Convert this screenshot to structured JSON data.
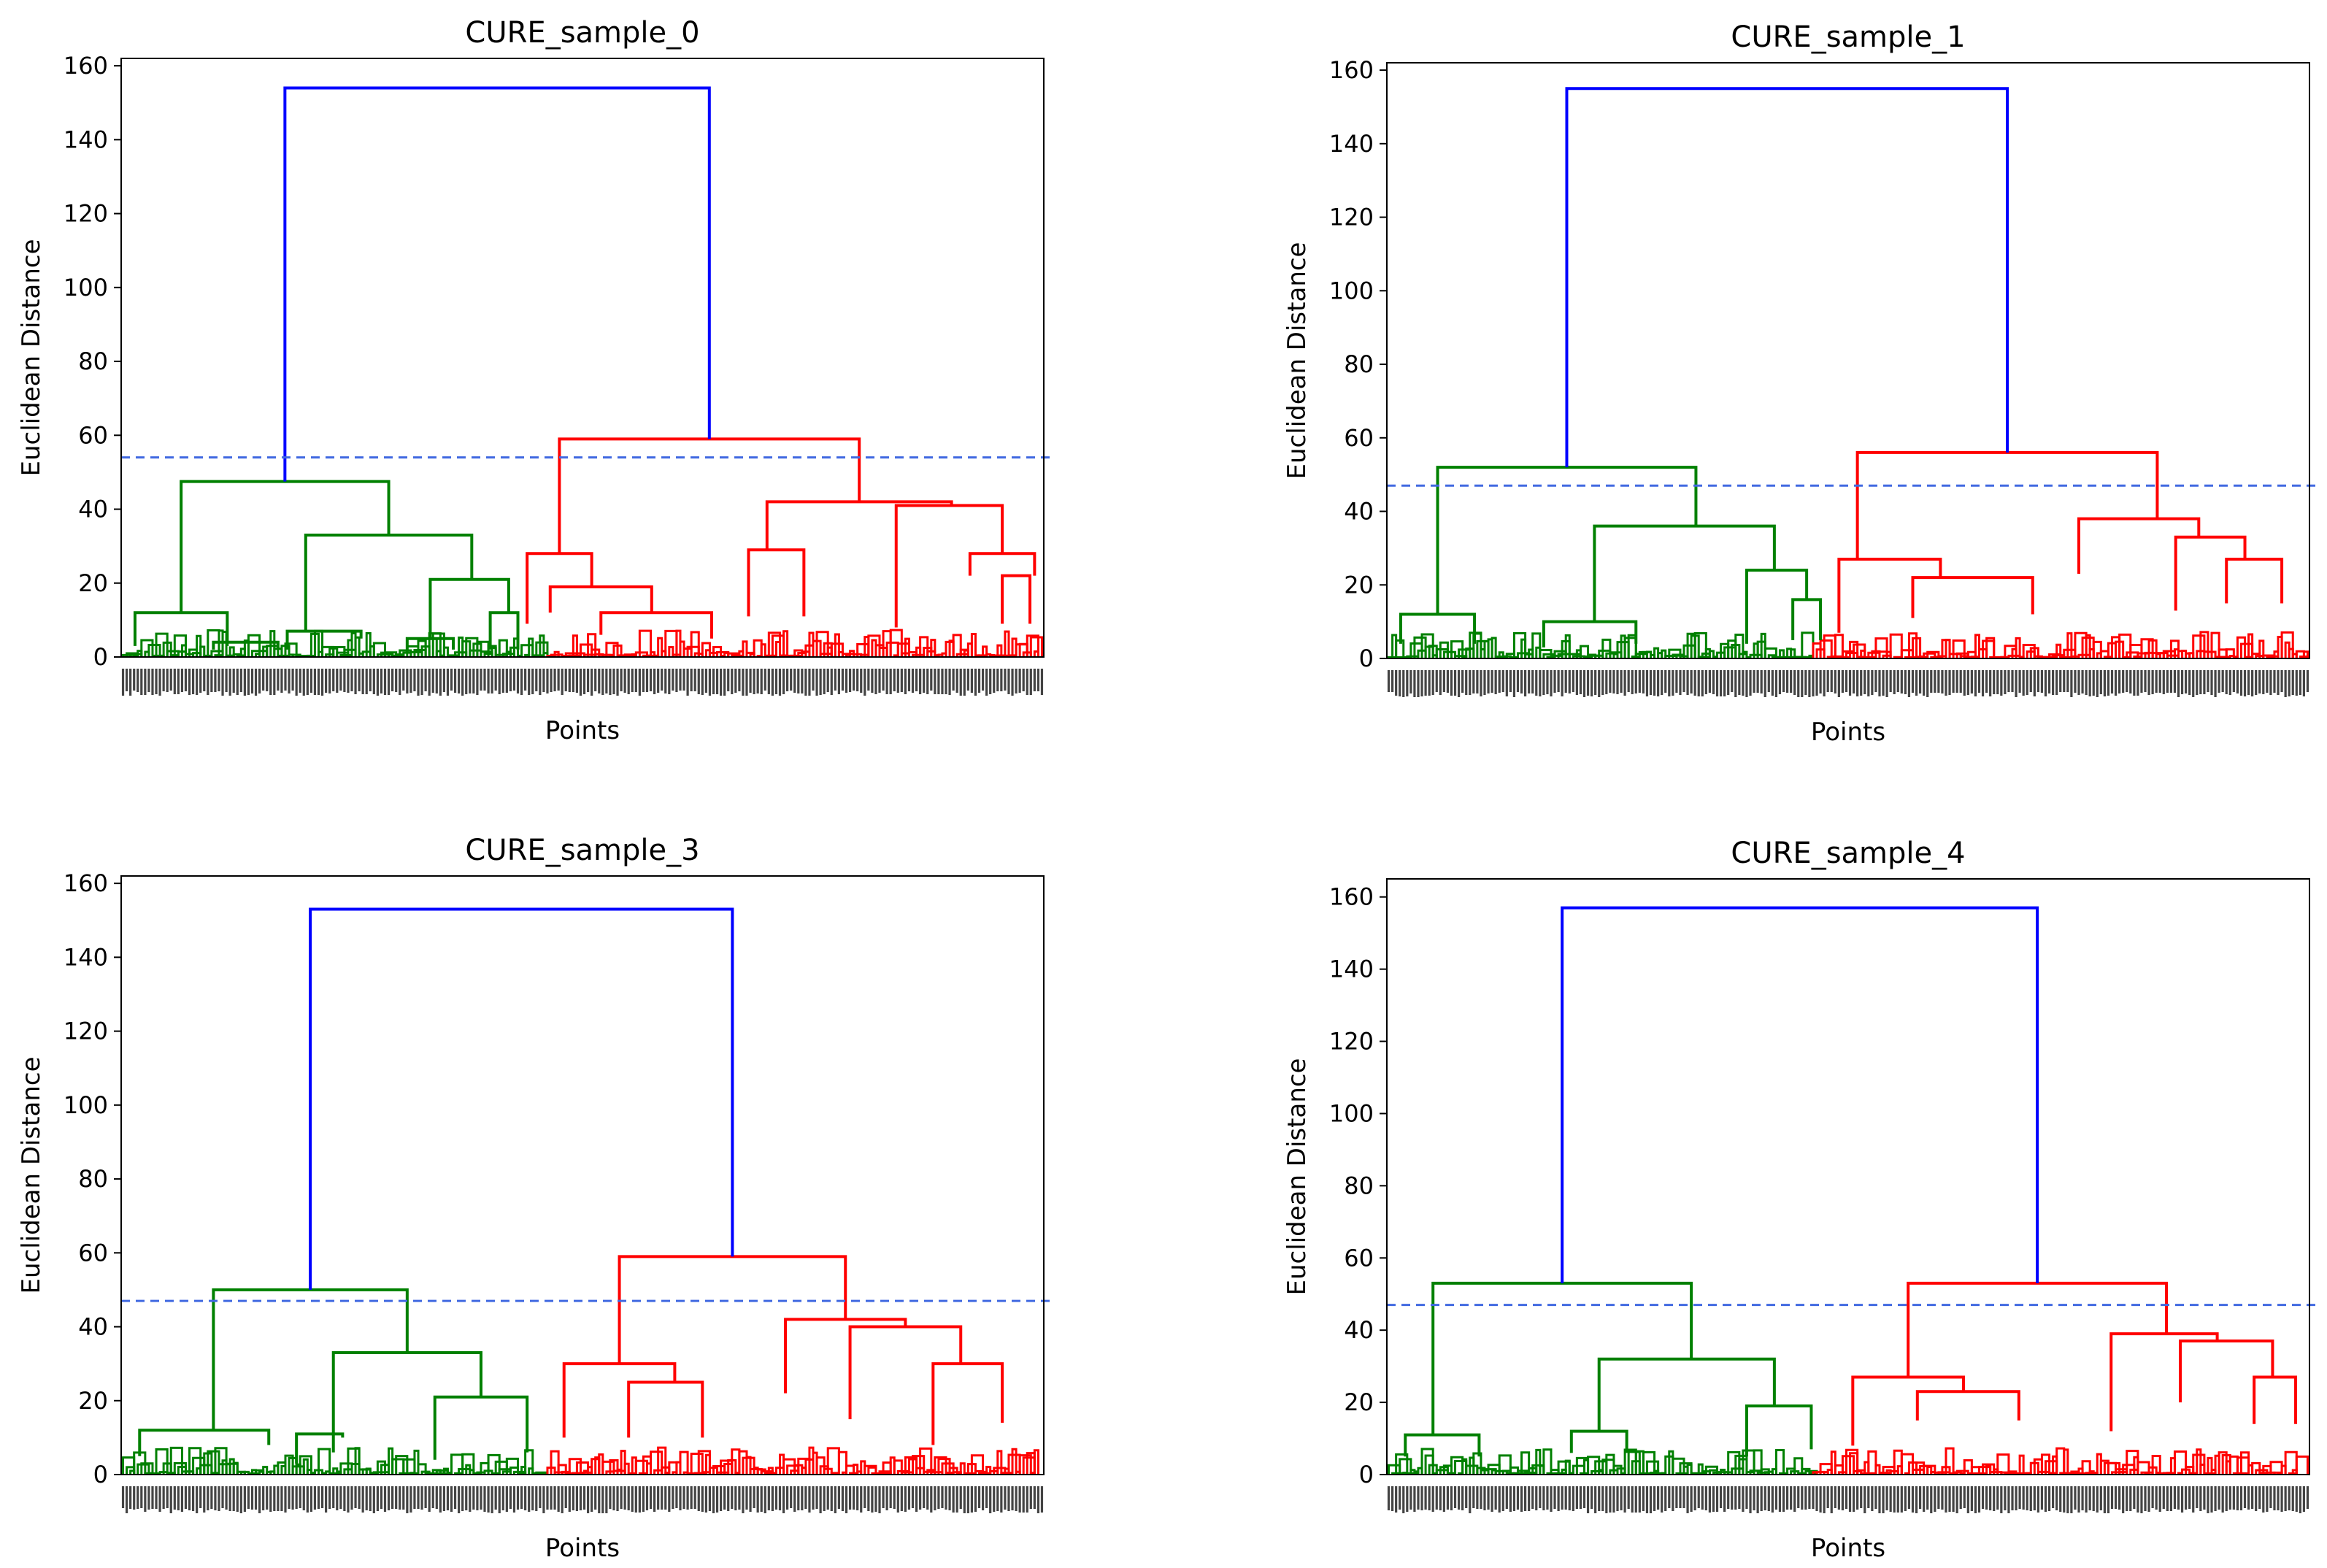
{
  "chart_data": [
    {
      "type": "dendrogram",
      "title": "CURE_sample_0",
      "xlabel": "Points",
      "ylabel": "Euclidean Distance",
      "ylim": [
        0,
        162
      ],
      "yticks": [
        0,
        20,
        40,
        60,
        80,
        100,
        120,
        140,
        160
      ],
      "leaf_count": 250,
      "cut_line": 54,
      "colors": {
        "left": "#008000",
        "right": "#ff0000",
        "root": "#0000ff",
        "cut": "#4169e1"
      },
      "root": {
        "height": 154,
        "left_x": 0.177,
        "right_x": 0.656
      },
      "left": {
        "height": 47.5,
        "segments": [
          [
            0,
            0.41,
            0,
            0.285,
            47.5
          ]
        ]
      },
      "right": {
        "height": 59,
        "segments": []
      },
      "links": [
        {
          "color": "left",
          "x1": 0.065,
          "x2": 0.29,
          "h1": 12,
          "h2": 33,
          "h": 47.5
        },
        {
          "color": "left",
          "x1": 0.015,
          "x2": 0.115,
          "h1": 3,
          "h2": 3,
          "h": 12
        },
        {
          "color": "left",
          "x1": 0.2,
          "x2": 0.38,
          "h1": 7,
          "h2": 21,
          "h": 33
        },
        {
          "color": "left",
          "x1": 0.1,
          "x2": 0.17,
          "h1": 2,
          "h2": 2,
          "h": 4
        },
        {
          "color": "left",
          "x1": 0.18,
          "x2": 0.26,
          "h1": 2,
          "h2": 5,
          "h": 7
        },
        {
          "color": "left",
          "x1": 0.335,
          "x2": 0.42,
          "h1": 5,
          "h2": 12,
          "h": 21
        },
        {
          "color": "left",
          "x1": 0.31,
          "x2": 0.36,
          "h1": 1,
          "h2": 2,
          "h": 5
        },
        {
          "color": "left",
          "x1": 0.4,
          "x2": 0.43,
          "h1": 2,
          "h2": 2,
          "h": 12
        },
        {
          "color": "right",
          "x1": 0.475,
          "x2": 0.8,
          "h1": 28,
          "h2": 42,
          "h": 59
        },
        {
          "color": "right",
          "x1": 0.44,
          "x2": 0.51,
          "h1": 9,
          "h2": 19,
          "h": 28
        },
        {
          "color": "right",
          "x1": 0.465,
          "x2": 0.575,
          "h1": 12,
          "h2": 12,
          "h": 19
        },
        {
          "color": "right",
          "x1": 0.52,
          "x2": 0.64,
          "h1": 6,
          "h2": 5,
          "h": 12
        },
        {
          "color": "right",
          "x1": 0.7,
          "x2": 0.9,
          "h1": 29,
          "h2": 41,
          "h": 42
        },
        {
          "color": "right",
          "x1": 0.68,
          "x2": 0.74,
          "h1": 11,
          "h2": 11,
          "h": 29
        },
        {
          "color": "right",
          "x1": 0.84,
          "x2": 0.955,
          "h1": 8,
          "h2": 28,
          "h": 41
        },
        {
          "color": "right",
          "x1": 0.92,
          "x2": 0.99,
          "h1": 22,
          "h2": 22,
          "h": 28
        },
        {
          "color": "right",
          "x1": 0.955,
          "x2": 0.985,
          "h1": 9,
          "h2": 9,
          "h": 22
        }
      ]
    },
    {
      "type": "dendrogram",
      "title": "CURE_sample_1",
      "xlabel": "Points",
      "ylabel": "Euclidean Distance",
      "ylim": [
        0,
        162
      ],
      "yticks": [
        0,
        20,
        40,
        60,
        80,
        100,
        120,
        140,
        160
      ],
      "leaf_count": 250,
      "cut_line": 47,
      "colors": {
        "left": "#008000",
        "right": "#ff0000",
        "root": "#0000ff",
        "cut": "#4169e1"
      },
      "root": {
        "height": 155,
        "left_x": 0.195,
        "right_x": 0.696
      },
      "links": [
        {
          "color": "left",
          "x1": 0.055,
          "x2": 0.335,
          "h1": 12,
          "h2": 36,
          "h": 52
        },
        {
          "color": "left",
          "x1": 0.015,
          "x2": 0.095,
          "h1": 4,
          "h2": 4,
          "h": 12
        },
        {
          "color": "left",
          "x1": 0.225,
          "x2": 0.42,
          "h1": 10,
          "h2": 24,
          "h": 36
        },
        {
          "color": "left",
          "x1": 0.17,
          "x2": 0.27,
          "h1": 3,
          "h2": 4,
          "h": 10
        },
        {
          "color": "left",
          "x1": 0.39,
          "x2": 0.455,
          "h1": 4,
          "h2": 16,
          "h": 24
        },
        {
          "color": "left",
          "x1": 0.44,
          "x2": 0.47,
          "h1": 5,
          "h2": 5,
          "h": 16
        },
        {
          "color": "right",
          "x1": 0.51,
          "x2": 0.835,
          "h1": 27,
          "h2": 38,
          "h": 56
        },
        {
          "color": "right",
          "x1": 0.49,
          "x2": 0.6,
          "h1": 7,
          "h2": 22,
          "h": 27
        },
        {
          "color": "right",
          "x1": 0.57,
          "x2": 0.7,
          "h1": 11,
          "h2": 12,
          "h": 22
        },
        {
          "color": "right",
          "x1": 0.75,
          "x2": 0.88,
          "h1": 23,
          "h2": 33,
          "h": 38
        },
        {
          "color": "right",
          "x1": 0.855,
          "x2": 0.93,
          "h1": 13,
          "h2": 27,
          "h": 33
        },
        {
          "color": "right",
          "x1": 0.91,
          "x2": 0.97,
          "h1": 15,
          "h2": 15,
          "h": 27
        }
      ]
    },
    {
      "type": "dendrogram",
      "title": "CURE_sample_3",
      "xlabel": "Points",
      "ylabel": "Euclidean Distance",
      "ylim": [
        0,
        162
      ],
      "yticks": [
        0,
        20,
        40,
        60,
        80,
        100,
        120,
        140,
        160
      ],
      "leaf_count": 250,
      "cut_line": 47,
      "colors": {
        "left": "#008000",
        "right": "#ff0000",
        "root": "#0000ff",
        "cut": "#4169e1"
      },
      "root": {
        "height": 153,
        "left_x": 0.2,
        "right_x": 0.655
      },
      "links": [
        {
          "color": "left",
          "x1": 0.1,
          "x2": 0.31,
          "h1": 12,
          "h2": 33,
          "h": 50
        },
        {
          "color": "left",
          "x1": 0.02,
          "x2": 0.16,
          "h1": 5,
          "h2": 8,
          "h": 12
        },
        {
          "color": "left",
          "x1": 0.23,
          "x2": 0.39,
          "h1": 6,
          "h2": 21,
          "h": 33
        },
        {
          "color": "left",
          "x1": 0.34,
          "x2": 0.44,
          "h1": 4,
          "h2": 6,
          "h": 21
        },
        {
          "color": "left",
          "x1": 0.19,
          "x2": 0.24,
          "h1": 3,
          "h2": 10,
          "h": 11
        },
        {
          "color": "right",
          "x1": 0.54,
          "x2": 0.785,
          "h1": 30,
          "h2": 42,
          "h": 59
        },
        {
          "color": "right",
          "x1": 0.48,
          "x2": 0.6,
          "h1": 10,
          "h2": 25,
          "h": 30
        },
        {
          "color": "right",
          "x1": 0.55,
          "x2": 0.63,
          "h1": 10,
          "h2": 10,
          "h": 25
        },
        {
          "color": "right",
          "x1": 0.72,
          "x2": 0.85,
          "h1": 22,
          "h2": 40,
          "h": 42
        },
        {
          "color": "right",
          "x1": 0.79,
          "x2": 0.91,
          "h1": 15,
          "h2": 30,
          "h": 40
        },
        {
          "color": "right",
          "x1": 0.88,
          "x2": 0.955,
          "h1": 8,
          "h2": 14,
          "h": 30
        }
      ]
    },
    {
      "type": "dendrogram",
      "title": "CURE_sample_4",
      "xlabel": "Points",
      "ylabel": "Euclidean Distance",
      "ylim": [
        0,
        165
      ],
      "yticks": [
        0,
        20,
        40,
        60,
        80,
        100,
        120,
        140,
        160
      ],
      "leaf_count": 250,
      "cut_line": 47,
      "colors": {
        "left": "#008000",
        "right": "#ff0000",
        "root": "#0000ff",
        "cut": "#4169e1"
      },
      "root": {
        "height": 157,
        "left_x": 0.193,
        "right_x": 0.7
      },
      "links": [
        {
          "color": "left",
          "x1": 0.05,
          "x2": 0.33,
          "h1": 11,
          "h2": 32,
          "h": 53
        },
        {
          "color": "left",
          "x1": 0.02,
          "x2": 0.1,
          "h1": 5,
          "h2": 5,
          "h": 11
        },
        {
          "color": "left",
          "x1": 0.23,
          "x2": 0.42,
          "h1": 12,
          "h2": 19,
          "h": 32
        },
        {
          "color": "left",
          "x1": 0.2,
          "x2": 0.26,
          "h1": 6,
          "h2": 6,
          "h": 12
        },
        {
          "color": "left",
          "x1": 0.39,
          "x2": 0.46,
          "h1": 5,
          "h2": 7,
          "h": 19
        },
        {
          "color": "right",
          "x1": 0.565,
          "x2": 0.845,
          "h1": 27,
          "h2": 39,
          "h": 53
        },
        {
          "color": "right",
          "x1": 0.505,
          "x2": 0.625,
          "h1": 8,
          "h2": 23,
          "h": 27
        },
        {
          "color": "right",
          "x1": 0.575,
          "x2": 0.685,
          "h1": 15,
          "h2": 15,
          "h": 23
        },
        {
          "color": "right",
          "x1": 0.785,
          "x2": 0.9,
          "h1": 12,
          "h2": 37,
          "h": 39
        },
        {
          "color": "right",
          "x1": 0.86,
          "x2": 0.96,
          "h1": 20,
          "h2": 27,
          "h": 37
        },
        {
          "color": "right",
          "x1": 0.94,
          "x2": 0.985,
          "h1": 14,
          "h2": 14,
          "h": 27
        }
      ]
    }
  ]
}
